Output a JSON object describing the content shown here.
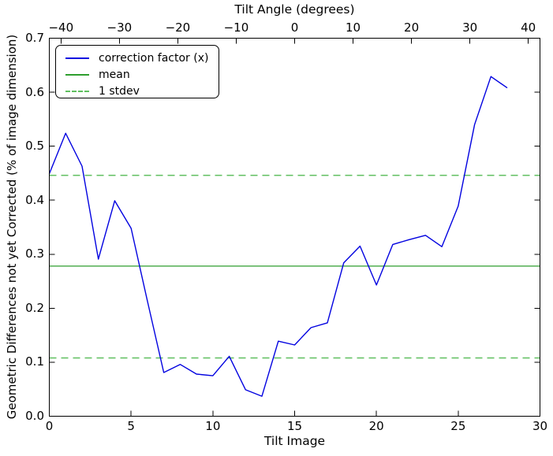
{
  "colors": {
    "axis": "#000000",
    "line": "#0202e0",
    "mean": "#2e9e2e",
    "stdev": "#5fbf5f",
    "background": "#ffffff"
  },
  "legend": {
    "items": [
      {
        "label": "correction factor (x)",
        "style": "solid",
        "colorKey": "line"
      },
      {
        "label": "mean",
        "style": "solid",
        "colorKey": "mean"
      },
      {
        "label": "1 stdev",
        "style": "dashed",
        "colorKey": "stdev"
      }
    ]
  },
  "chart_data": {
    "type": "line",
    "title": "Tilt Angle (degrees)",
    "xlabel": "Tilt Image",
    "ylabel": "Geometric Differences not yet Corrected (% of image dimension)",
    "xlim": [
      0,
      30
    ],
    "ylim": [
      0,
      0.7
    ],
    "grid": false,
    "legend_position": "upper left",
    "x_ticks": {
      "values": [
        0,
        5,
        10,
        15,
        20,
        25,
        30
      ],
      "labels": [
        "0",
        "5",
        "10",
        "15",
        "20",
        "25",
        "30"
      ]
    },
    "y_ticks": {
      "values": [
        0.0,
        0.1,
        0.2,
        0.3,
        0.4,
        0.5,
        0.6,
        0.7
      ],
      "labels": [
        "0.0",
        "0.1",
        "0.2",
        "0.3",
        "0.4",
        "0.5",
        "0.6",
        "0.7"
      ]
    },
    "top_axis": {
      "label": "Tilt Angle (degrees)",
      "lim": [
        -42,
        42
      ],
      "tick_values": [
        -40,
        -30,
        -20,
        -10,
        0,
        10,
        20,
        30,
        40
      ],
      "tick_labels": [
        "−40",
        "−30",
        "−20",
        "−10",
        "0",
        "10",
        "20",
        "30",
        "40"
      ]
    },
    "series": [
      {
        "name": "correction factor (x)",
        "type": "line",
        "x": [
          0,
          1,
          2,
          3,
          4,
          5,
          6,
          7,
          8,
          9,
          10,
          11,
          12,
          13,
          14,
          15,
          16,
          17,
          18,
          19,
          20,
          21,
          22,
          23,
          24,
          25,
          26,
          27,
          28
        ],
        "y": [
          0.449,
          0.524,
          0.463,
          0.291,
          0.399,
          0.348,
          0.213,
          0.081,
          0.096,
          0.078,
          0.075,
          0.111,
          0.049,
          0.037,
          0.139,
          0.132,
          0.164,
          0.173,
          0.284,
          0.315,
          0.243,
          0.318,
          0.327,
          0.335,
          0.314,
          0.389,
          0.54,
          0.629,
          0.608
        ]
      },
      {
        "name": "mean",
        "type": "hline",
        "y": 0.278
      },
      {
        "name": "1 stdev",
        "type": "hline",
        "y_values": [
          0.446,
          0.108
        ]
      }
    ]
  }
}
